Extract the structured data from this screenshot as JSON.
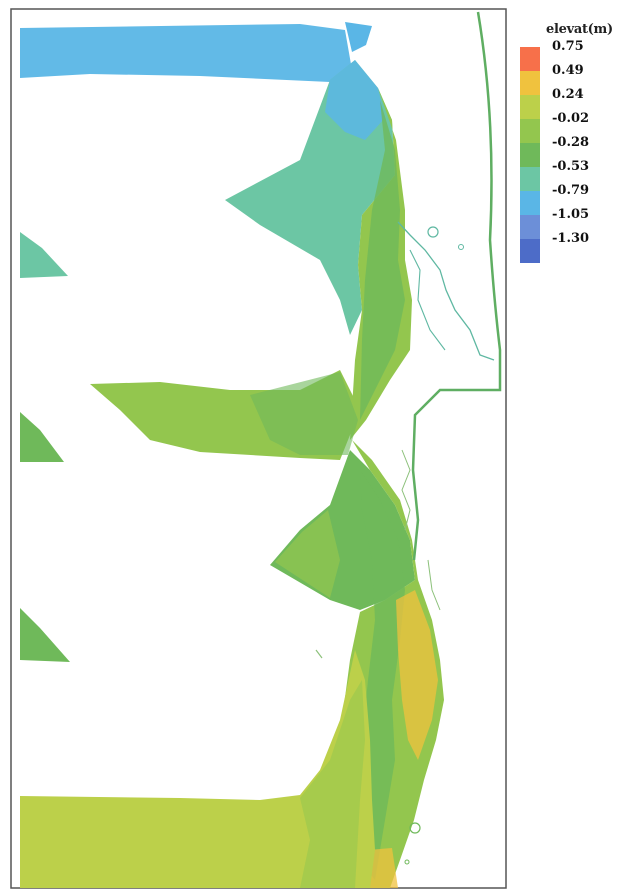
{
  "legend": {
    "title": "elevat(m)",
    "entries": [
      {
        "label": "0.75",
        "color": "#f7704a"
      },
      {
        "label": "0.49",
        "color": "#f0c23e"
      },
      {
        "label": "0.24",
        "color": "#bcd04a"
      },
      {
        "label": "-0.02",
        "color": "#93c64e"
      },
      {
        "label": "-0.28",
        "color": "#6fb95a"
      },
      {
        "label": "-0.53",
        "color": "#6cc6a4"
      },
      {
        "label": "-0.79",
        "color": "#5ab6e6"
      },
      {
        "label": "-1.05",
        "color": "#6c8fd8"
      },
      {
        "label": "-1.30",
        "color": "#4d6cc8"
      }
    ]
  },
  "colors": {
    "shoreline": "#5fae62",
    "frame": "#555555",
    "contour": "#5fb8a2"
  }
}
